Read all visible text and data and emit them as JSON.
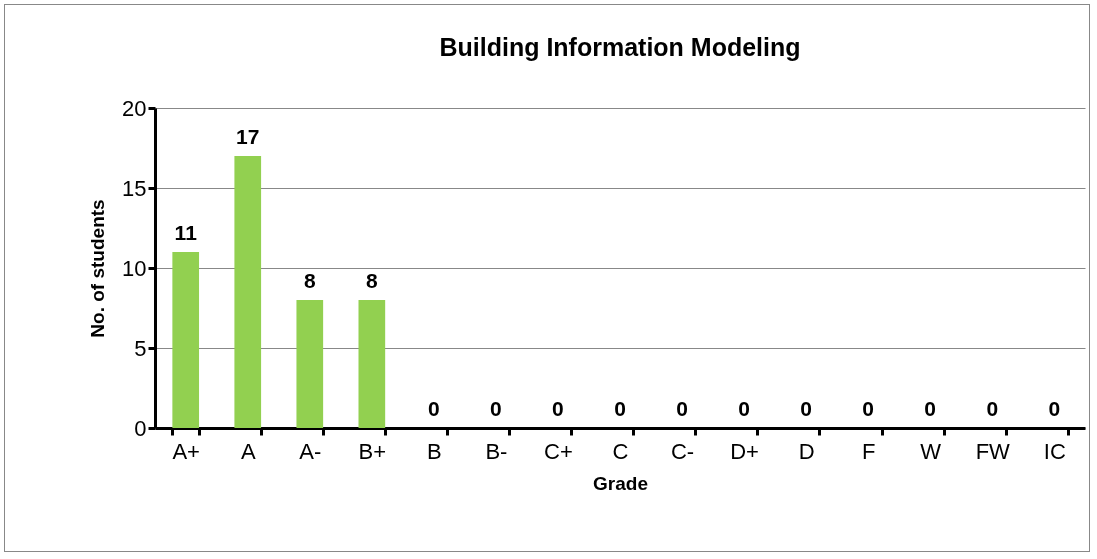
{
  "chart_data": {
    "type": "bar",
    "title": "Building Information Modeling",
    "xlabel": "Grade",
    "ylabel": "No. of students",
    "categories": [
      "A+",
      "A",
      "A-",
      "B+",
      "B",
      "B-",
      "C+",
      "C",
      "C-",
      "D+",
      "D",
      "F",
      "W",
      "FW",
      "IC"
    ],
    "values": [
      11,
      17,
      8,
      8,
      0,
      0,
      0,
      0,
      0,
      0,
      0,
      0,
      0,
      0,
      0
    ],
    "color": "#92d050",
    "ylim": [
      0,
      20
    ],
    "yticks": [
      0,
      5,
      10,
      15,
      20
    ],
    "grid": "y",
    "data_labels": true
  }
}
